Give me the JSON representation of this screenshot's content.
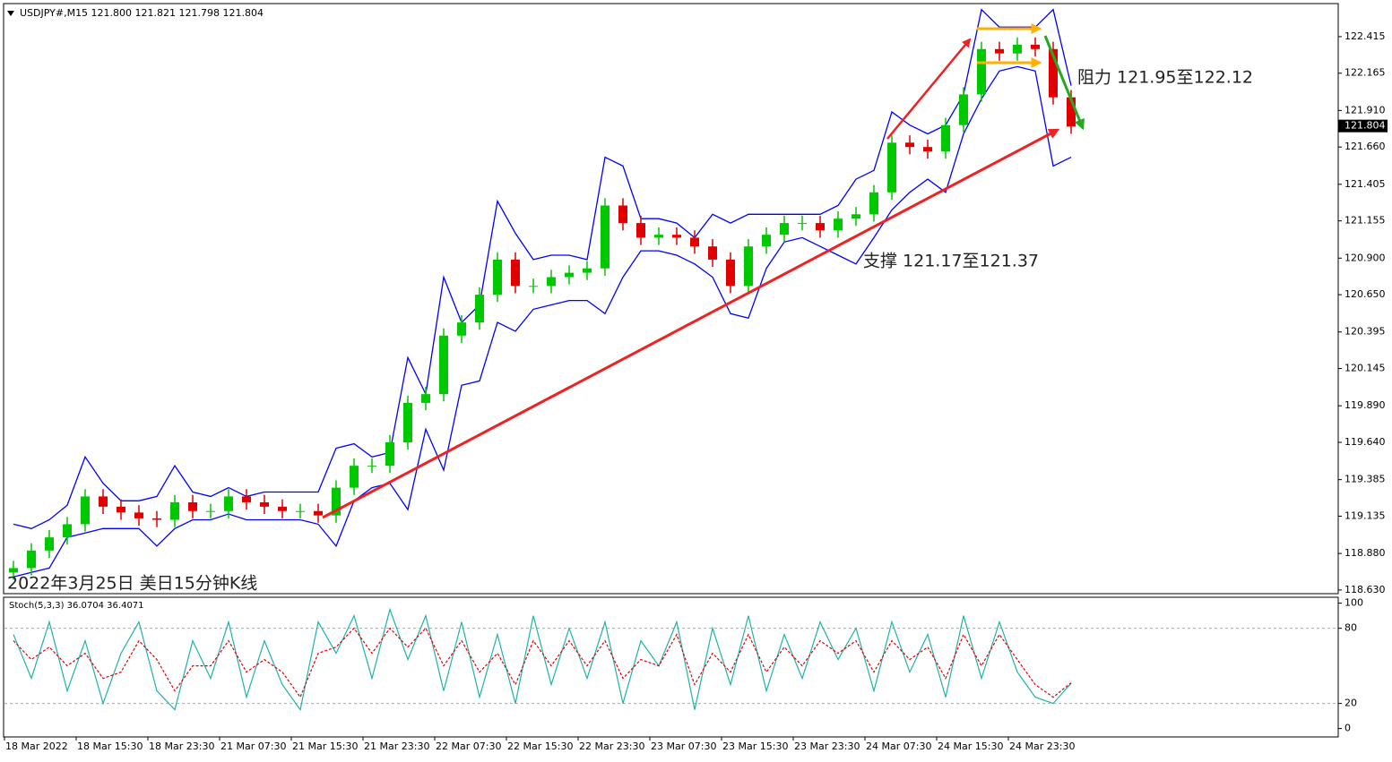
{
  "chart_data": [
    {
      "type": "candlestick",
      "title": "USDJPY#,M15  121.800 121.821 121.798 121.804",
      "xlim": [
        0,
        74.4
      ],
      "ylim": [
        118.605,
        122.635
      ],
      "yticks": [
        {
          "value": 118.63,
          "label": "118.630"
        },
        {
          "value": 118.88,
          "label": "118.880"
        },
        119.135,
        119.385,
        {
          "value": 119.64,
          "label": "119.640"
        },
        {
          "value": 119.89,
          "label": "119.890"
        },
        120.145,
        120.395,
        {
          "value": 120.65,
          "label": "120.650"
        },
        {
          "value": 120.9,
          "label": "120.900"
        },
        121.155,
        121.405,
        {
          "value": 121.66,
          "label": "121.660"
        },
        {
          "value": 121.91,
          "label": "121.910"
        },
        122.165,
        122.415
      ],
      "last_price": 121.804,
      "up_color": "#00c800",
      "down_color": "#e00000",
      "open": [
        118.75,
        118.78,
        118.9,
        118.99,
        119.08,
        119.27,
        119.2,
        119.16,
        119.12,
        119.11,
        119.23,
        119.17,
        119.17,
        119.27,
        119.23,
        119.2,
        119.17,
        119.17,
        119.14,
        119.33,
        119.48,
        119.48,
        119.64,
        119.91,
        119.97,
        120.37,
        120.46,
        120.65,
        120.89,
        120.71,
        120.71,
        120.77,
        120.8,
        120.83,
        121.26,
        121.14,
        121.04,
        121.06,
        121.04,
        120.98,
        120.89,
        120.71,
        120.98,
        121.06,
        121.14,
        121.14,
        121.09,
        121.17,
        121.2,
        121.35,
        121.69,
        121.66,
        121.63,
        121.81,
        122.02,
        122.33,
        122.3,
        122.36,
        122.33,
        122.0
      ],
      "high": [
        118.83,
        118.95,
        119.04,
        119.13,
        119.32,
        119.32,
        119.25,
        119.21,
        119.17,
        119.28,
        119.28,
        119.22,
        119.32,
        119.32,
        119.28,
        119.25,
        119.22,
        119.22,
        119.38,
        119.53,
        119.53,
        119.69,
        119.96,
        120.02,
        120.42,
        120.51,
        120.7,
        120.94,
        120.94,
        120.76,
        120.82,
        120.85,
        120.88,
        121.31,
        121.31,
        121.19,
        121.11,
        121.11,
        121.09,
        121.03,
        120.94,
        121.03,
        121.11,
        121.19,
        121.19,
        121.19,
        121.22,
        121.25,
        121.4,
        121.74,
        121.74,
        121.71,
        121.86,
        122.07,
        122.38,
        122.38,
        122.41,
        122.41,
        122.38,
        122.05
      ],
      "low": [
        118.7,
        118.73,
        118.85,
        118.94,
        119.03,
        119.15,
        119.11,
        119.07,
        119.06,
        119.06,
        119.12,
        119.12,
        119.12,
        119.18,
        119.15,
        119.12,
        119.12,
        119.09,
        119.09,
        119.28,
        119.43,
        119.43,
        119.59,
        119.86,
        119.92,
        120.32,
        120.41,
        120.6,
        120.66,
        120.66,
        120.66,
        120.72,
        120.75,
        120.78,
        121.09,
        120.99,
        120.99,
        120.99,
        120.93,
        120.84,
        120.66,
        120.66,
        120.93,
        121.01,
        121.09,
        121.04,
        121.04,
        121.12,
        121.15,
        121.3,
        121.61,
        121.58,
        121.58,
        121.76,
        121.97,
        122.25,
        122.25,
        122.28,
        121.95,
        121.75
      ],
      "close": [
        118.78,
        118.9,
        118.99,
        119.08,
        119.27,
        119.2,
        119.16,
        119.12,
        119.11,
        119.23,
        119.17,
        119.17,
        119.27,
        119.23,
        119.2,
        119.17,
        119.17,
        119.14,
        119.33,
        119.48,
        119.48,
        119.64,
        119.91,
        119.97,
        120.37,
        120.46,
        120.65,
        120.89,
        120.71,
        120.71,
        120.77,
        120.8,
        120.83,
        121.26,
        121.14,
        121.04,
        121.06,
        121.04,
        120.98,
        120.89,
        120.71,
        120.98,
        121.06,
        121.14,
        121.14,
        121.09,
        121.17,
        121.2,
        121.35,
        121.69,
        121.66,
        121.63,
        121.81,
        122.02,
        122.33,
        122.3,
        122.36,
        122.33,
        122.0,
        121.8
      ],
      "bands": {
        "color": "#0000ff",
        "upper": [
          119.08,
          119.05,
          119.11,
          119.21,
          119.54,
          119.36,
          119.24,
          119.24,
          119.27,
          119.48,
          119.3,
          119.27,
          119.33,
          119.27,
          119.3,
          119.3,
          119.3,
          119.3,
          119.6,
          119.63,
          119.54,
          119.57,
          120.22,
          119.97,
          120.77,
          120.46,
          120.58,
          121.29,
          121.07,
          120.89,
          120.92,
          120.92,
          120.89,
          121.59,
          121.53,
          121.17,
          121.17,
          121.14,
          121.04,
          121.2,
          121.14,
          121.2,
          121.2,
          121.2,
          121.2,
          121.2,
          121.26,
          121.44,
          121.5,
          121.9,
          121.81,
          121.75,
          121.81,
          122.02,
          122.6,
          122.48,
          122.48,
          122.48,
          122.6,
          122.08
        ],
        "lower": [
          118.72,
          118.75,
          118.78,
          118.99,
          119.02,
          119.05,
          119.05,
          119.05,
          118.93,
          119.05,
          119.11,
          119.11,
          119.15,
          119.11,
          119.11,
          119.11,
          119.11,
          119.08,
          118.93,
          119.24,
          119.33,
          119.36,
          119.18,
          119.73,
          119.45,
          120.03,
          120.06,
          120.46,
          120.4,
          120.55,
          120.58,
          120.61,
          120.61,
          120.52,
          120.77,
          120.95,
          120.95,
          120.92,
          120.86,
          120.77,
          120.52,
          120.49,
          120.83,
          121.01,
          121.04,
          120.98,
          120.92,
          120.86,
          121.04,
          121.23,
          121.35,
          121.44,
          121.35,
          121.75,
          121.99,
          122.18,
          122.21,
          122.18,
          121.53,
          121.59
        ]
      },
      "annotations": [
        "阻力 121.95至122.12",
        "支撑 121.17至121.37",
        "2022年3月25日 美日15分钟K线"
      ]
    },
    {
      "type": "line",
      "title": "Stoch(5,3,3) 36.0704 36.4071",
      "xlim": [
        0,
        74.4
      ],
      "xticks": [
        {
          "value": 0,
          "label": "18 Mar 2022"
        },
        {
          "value": 4,
          "label": "18 Mar 15:30"
        },
        {
          "value": 8,
          "label": "18 Mar 23:30"
        },
        {
          "value": 12,
          "label": "21 Mar 07:30"
        },
        {
          "value": 16,
          "label": "21 Mar 15:30"
        },
        {
          "value": 20,
          "label": "21 Mar 23:30"
        },
        {
          "value": 24,
          "label": "22 Mar 07:30"
        },
        {
          "value": 28,
          "label": "22 Mar 15:30"
        },
        {
          "value": 32,
          "label": "22 Mar 23:30"
        },
        {
          "value": 36,
          "label": "23 Mar 07:30"
        },
        {
          "value": 40,
          "label": "23 Mar 15:30"
        },
        {
          "value": 44,
          "label": "23 Mar 23:30"
        },
        {
          "value": 48,
          "label": "24 Mar 07:30"
        },
        {
          "value": 52,
          "label": "24 Mar 15:30"
        },
        {
          "value": 56,
          "label": "24 Mar 23:30"
        }
      ],
      "ylim": [
        -6,
        104
      ],
      "yticks": [
        0,
        20,
        80,
        100
      ],
      "levels": [
        20,
        80
      ],
      "series": [
        {
          "color": "#20b2aa",
          "dashed": false,
          "values": [
            75,
            40,
            85,
            30,
            70,
            20,
            60,
            85,
            30,
            15,
            70,
            40,
            85,
            25,
            70,
            35,
            15,
            85,
            60,
            90,
            40,
            95,
            55,
            90,
            30,
            85,
            25,
            75,
            20,
            90,
            35,
            80,
            40,
            85,
            20,
            70,
            50,
            85,
            15,
            80,
            35,
            90,
            30,
            75,
            40,
            85,
            55,
            80,
            30,
            85,
            45,
            75,
            25,
            90,
            40,
            85,
            45,
            25,
            20,
            36.0704
          ]
        },
        {
          "color": "#e00000",
          "dashed": true,
          "values": [
            70,
            55,
            65,
            50,
            60,
            40,
            45,
            70,
            55,
            30,
            50,
            50,
            70,
            45,
            55,
            45,
            25,
            60,
            65,
            80,
            60,
            80,
            65,
            80,
            50,
            70,
            45,
            60,
            35,
            70,
            50,
            70,
            50,
            70,
            40,
            55,
            50,
            75,
            35,
            60,
            45,
            75,
            45,
            65,
            50,
            70,
            60,
            70,
            45,
            70,
            55,
            65,
            40,
            75,
            50,
            75,
            55,
            35,
            25,
            36.4071
          ]
        }
      ]
    }
  ]
}
